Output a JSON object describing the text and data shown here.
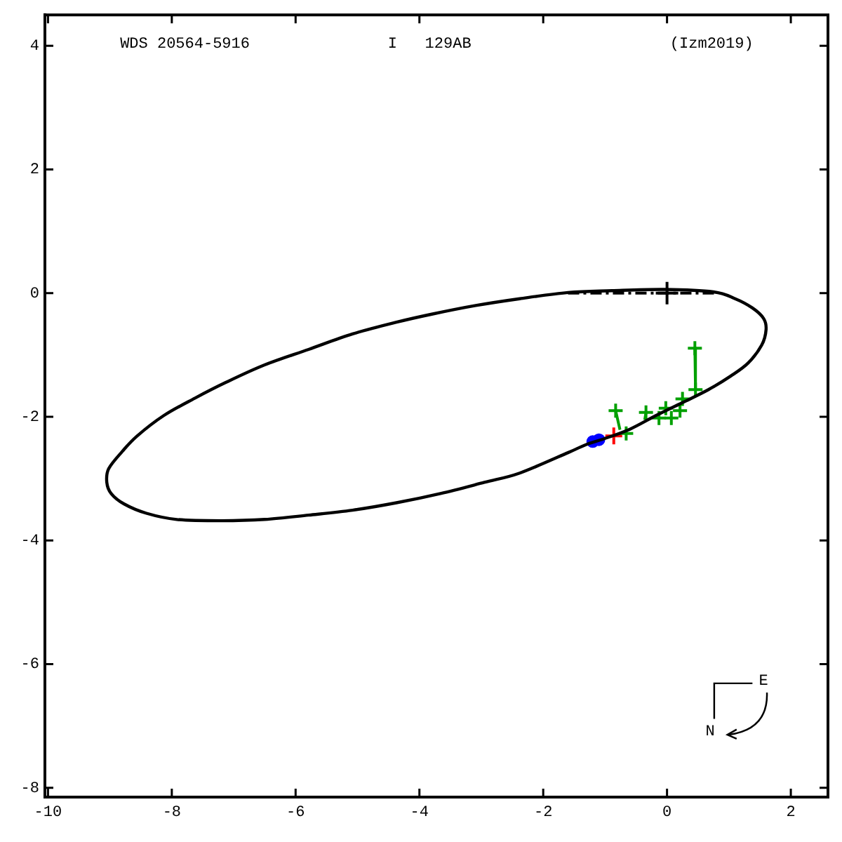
{
  "chart_data": {
    "type": "scatter",
    "title": "WDS 20564-5916",
    "subtitle": "I   129AB",
    "annotations": [
      "(Izm2019)",
      "E",
      "N"
    ],
    "xlim": [
      -10.05,
      2.6
    ],
    "ylim": [
      -8.15,
      4.5
    ],
    "xticks": [
      -10,
      -8,
      -6,
      -4,
      -2,
      0,
      2
    ],
    "yticks": [
      -8,
      -6,
      -4,
      -2,
      0,
      2,
      4
    ],
    "series": [
      {
        "marker": "cross",
        "color": "#000000",
        "x": [
          0
        ],
        "values": [
          0
        ]
      },
      {
        "marker": "cross",
        "color": "#00a000",
        "x": [
          0.45,
          0.46,
          0.25,
          0.21,
          -0.02,
          0.07,
          -0.13,
          -0.34,
          -0.83,
          -0.66
        ],
        "values": [
          -0.89,
          -1.56,
          -1.71,
          -1.9,
          -1.86,
          -2.02,
          -2.02,
          -1.93,
          -1.9,
          -2.27
        ]
      },
      {
        "marker": "cross",
        "color": "#ff0000",
        "x": [
          -0.86
        ],
        "values": [
          -2.31
        ]
      },
      {
        "marker": "circle",
        "color": "#0000ff",
        "x": [
          -1.2,
          -1.1
        ],
        "values": [
          -2.4,
          -2.37
        ]
      },
      {
        "type": "line",
        "color": "#00a000",
        "x": [
          0.45,
          0.46,
          null,
          -0.83,
          -0.76,
          null,
          -0.34,
          -0.36
        ],
        "values": [
          -0.89,
          -1.56,
          null,
          -1.9,
          -2.21,
          null,
          -1.93,
          -2.05
        ]
      },
      {
        "type": "line",
        "color": "#000000",
        "line_style": "dashed",
        "x": [
          -1.6,
          0.78
        ],
        "values": [
          0,
          0
        ]
      }
    ]
  }
}
